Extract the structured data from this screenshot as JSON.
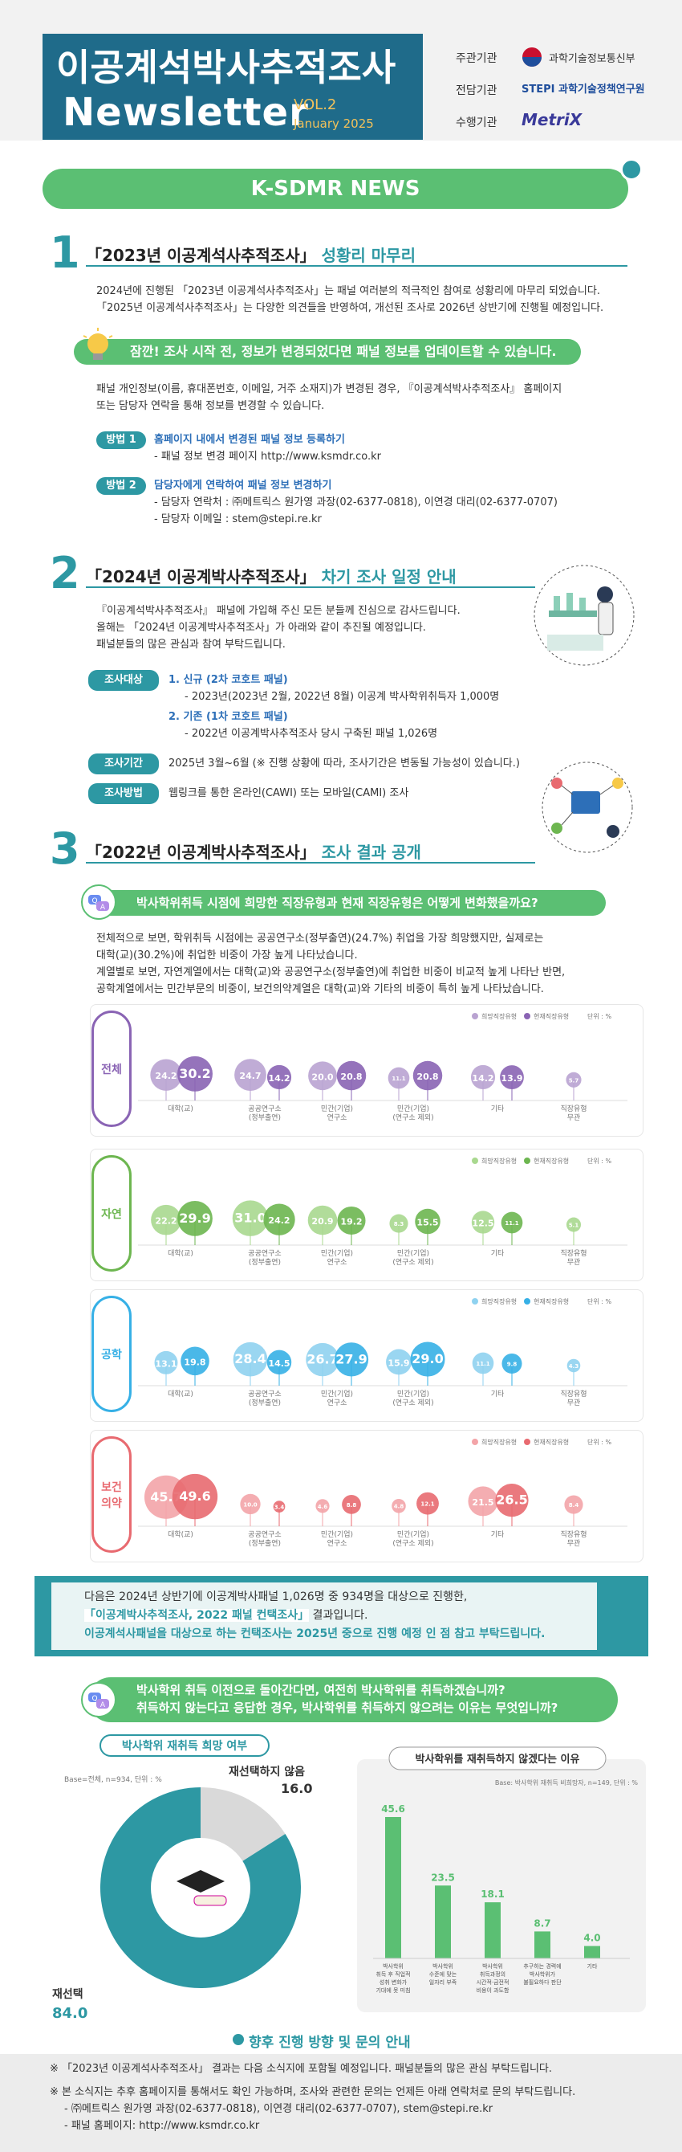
{
  "header": {
    "title_ko": "이공계석박사추적조사",
    "title_en": "Newsletter",
    "vol": "VOL.2",
    "date": "January 2025",
    "orgs": [
      {
        "role": "주관기관",
        "name": "과학기술정보통신부"
      },
      {
        "role": "전담기관",
        "name": "STEPI 과학기술정책연구원"
      },
      {
        "role": "수행기관",
        "name": "MetriX"
      }
    ]
  },
  "banner": "K-SDMR NEWS",
  "sec1": {
    "num": "1",
    "title_a": "「2023년 이공계석사추적조사」",
    "title_b": "성황리 마무리",
    "para": [
      "2024년에 진행된 「2023년 이공계석사추적조사」는 패널 여러분의 적극적인 참여로 성황리에 마무리 되었습니다.",
      "「2025년 이공계석사추적조사」는 다양한 의견들을 반영하여, 개선된 조사로 2026년 상반기에 진행될 예정입니다."
    ],
    "pill": "잠깐! 조사 시작 전, 정보가 변경되었다면 패널 정보를 업데이트할 수 있습니다.",
    "para2": [
      "패널 개인정보(이름, 휴대폰번호, 이메일, 거주 소재지)가 변경된 경우, 『이공계석박사추적조사』 홈페이지",
      "또는 담당자 연락을 통해 정보를 변경할 수 있습니다."
    ],
    "m1_tag": "방법 1",
    "m1_title": "홈페이지 내에서 변경된 패널 정보 등록하기",
    "m1_lines": [
      "- 패널 정보 변경 페이지 http://www.ksmdr.co.kr"
    ],
    "m2_tag": "방법 2",
    "m2_title": "담당자에게 연락하여 패널 정보 변경하기",
    "m2_lines": [
      "- 담당자 연락처 : ㈜메트릭스 원가영 과장(02-6377-0818), 이연경 대리(02-6377-0707)",
      "- 담당자 이메일 : stem@stepi.re.kr"
    ]
  },
  "sec2": {
    "num": "2",
    "title_a": "「2024년 이공계박사추적조사」",
    "title_b": "차기 조사 일정 안내",
    "para": [
      "『이공계석박사추적조사』 패널에 가입해 주신 모든 분들께 진심으로 감사드립니다.",
      "올해는 「2024년 이공계박사추적조사」가 아래와 같이 추진될 예정입니다.",
      "패널분들의 많은 관심과 참여 부탁드립니다."
    ],
    "target_tag": "조사대상",
    "t1": "1. 신규 (2차 코호트 패널)",
    "t1_line": "- 2023년(2023년 2월, 2022년 8월) 이공계 박사학위취득자 1,000명",
    "t2": "2. 기존 (1차 코호트 패널)",
    "t2_line": "- 2022년 이공계박사추적조사 당시 구축된 패널 1,026명",
    "period_tag": "조사기간",
    "period": "2025년 3월~6월 (※ 진행 상황에 따라, 조사기간은 변동될 가능성이 있습니다.)",
    "method_tag": "조사방법",
    "method": "웹링크를 통한 온라인(CAWI) 또는 모바일(CAMI) 조사"
  },
  "sec3": {
    "num": "3",
    "title_a": "「2022년 이공계박사추적조사」",
    "title_b": "조사 결과 공개",
    "pill": "박사학위취득 시점에 희망한 직장유형과 현재 직장유형은 어떻게 변화했을까요?",
    "para": [
      "전체적으로 보면, 학위취득 시점에는 공공연구소(정부출연)(24.7%) 취업을 가장 희망했지만, 실제로는",
      "대학(교)(30.2%)에 취업한 비중이 가장 높게 나타났습니다.",
      "계열별로 보면, 자연계열에서는 대학(교)와 공공연구소(정부출연)에 취업한 비중이 비교적 높게 나타난 반면,",
      "공학계열에서는 민간부문의 비중이, 보건의약계열은 대학(교)와 기타의 비중이 특히 높게 나타났습니다."
    ],
    "legend_a": "희망직장유형",
    "legend_b": "현재직장유형",
    "legend_unit": "단위 : %",
    "categories": [
      "대학(교)",
      "공공연구소\n(정부출연)",
      "민간(기업)\n연구소",
      "민간(기업)\n(연구소 제외)",
      "기타",
      "직장유형\n무관"
    ]
  },
  "chart_data": [
    {
      "type": "scatter",
      "title": "전체",
      "categories": [
        "대학(교)",
        "공공연구소(정부출연)",
        "민간(기업)연구소",
        "민간(기업)(연구소 제외)",
        "기타",
        "직장유형무관"
      ],
      "series": [
        {
          "name": "희망직장유형",
          "values": [
            24.2,
            24.7,
            20.0,
            11.1,
            14.2,
            5.7
          ]
        },
        {
          "name": "현재직장유형",
          "values": [
            30.2,
            14.2,
            20.8,
            20.8,
            13.9,
            null
          ]
        }
      ],
      "colors": [
        "#b9a3d1",
        "#8a64b4"
      ]
    },
    {
      "type": "scatter",
      "title": "자연",
      "categories": [
        "대학(교)",
        "공공연구소(정부출연)",
        "민간(기업)연구소",
        "민간(기업)(연구소 제외)",
        "기타",
        "직장유형무관"
      ],
      "series": [
        {
          "name": "희망직장유형",
          "values": [
            22.2,
            31.0,
            20.9,
            8.3,
            12.5,
            5.1
          ]
        },
        {
          "name": "현재직장유형",
          "values": [
            29.9,
            24.2,
            19.2,
            15.5,
            11.1,
            null
          ]
        }
      ],
      "colors": [
        "#a9d88f",
        "#6db650"
      ]
    },
    {
      "type": "scatter",
      "title": "공학",
      "categories": [
        "대학(교)",
        "공공연구소(정부출연)",
        "민간(기업)연구소",
        "민간(기업)(연구소 제외)",
        "기타",
        "직장유형무관"
      ],
      "series": [
        {
          "name": "희망직장유형",
          "values": [
            13.1,
            28.4,
            26.7,
            15.9,
            11.1,
            4.3
          ]
        },
        {
          "name": "현재직장유형",
          "values": [
            19.8,
            14.5,
            27.9,
            29.0,
            9.8,
            null
          ]
        }
      ],
      "colors": [
        "#8fd2f0",
        "#36b0e6"
      ]
    },
    {
      "type": "scatter",
      "title": "보건\n의약",
      "categories": [
        "대학(교)",
        "공공연구소(정부출연)",
        "민간(기업)연구소",
        "민간(기업)(연구소 제외)",
        "기타",
        "직장유형무관"
      ],
      "series": [
        {
          "name": "희망직장유형",
          "values": [
            45.7,
            10.0,
            4.6,
            4.8,
            21.5,
            8.4
          ]
        },
        {
          "name": "현재직장유형",
          "values": [
            49.6,
            3.4,
            8.8,
            12.1,
            26.5,
            null
          ]
        }
      ],
      "colors": [
        "#f3a4a8",
        "#e86a70"
      ]
    },
    {
      "type": "pie",
      "title": "박사학위 재취득 희망 여부",
      "note": "Base=전체, n=934, 단위 : %",
      "labels": [
        "재선택하지 않음",
        "재선택"
      ],
      "values": [
        16.0,
        84.0
      ],
      "colors": [
        "#d9d9d9",
        "#2d98a3"
      ]
    },
    {
      "type": "bar",
      "title": "박사학위를 재취득하지 않겠다는 이유",
      "note": "Base: 박사학위 재취득 비희망자, n=149, 단위 : %",
      "categories": [
        "박사학위\n취득 후 직업적\n성취 변화가\n기대에 못 미침",
        "박사학위\n수준에 맞는\n일자리 부족",
        "박사학위\n취득과정의\n시간적·금전적\n비용이 과도함",
        "추구하는 경력에\n박사학위가\n불필요하다 판단",
        "기타"
      ],
      "values": [
        45.6,
        23.5,
        18.1,
        8.7,
        4.0
      ],
      "color": "#5bbf73",
      "ylim": [
        0,
        50
      ]
    }
  ],
  "summary": {
    "line1": "다음은 2024년 상반기에 이공계박사패널 1,026명 중 934명을 대상으로 진행한,",
    "line2a": "「이공계박사추적조사, 2022 패널 컨택조사」",
    "line2b": " 결과입니다.",
    "line3": "이공계석사패널을 대상으로 하는 컨택조사는 2025년 중으로 진행 예정 인 점 참고 부탁드립니다."
  },
  "q2": {
    "pill_l1": "박사학위 취득 이전으로 돌아간다면, 여전히 박사학위를 취득하겠습니까?",
    "pill_l2": "취득하지 않는다고 응답한 경우, 박사학위를 취득하지 않으려는 이유는 무엇입니까?"
  },
  "next": "향후 진행 방향 및 문의 안내",
  "footer": {
    "l1": "※ 「2023년 이공계석사추적조사」 결과는 다음 소식지에 포함될 예정입니다. 패널분들의 많은 관심 부탁드립니다.",
    "l2": "※ 본 소식지는 추후 홈페이지를 통해서도 확인 가능하며, 조사와 관련한 문의는 언제든 아래 연락처로 문의 부탁드립니다.",
    "l3": "- ㈜메트릭스 원가영 과장(02-6377-0818), 이연경 대리(02-6377-0707), stem@stepi.re.kr",
    "l4": "- 패널 홈페이지: http://www.ksmdr.co.kr"
  }
}
